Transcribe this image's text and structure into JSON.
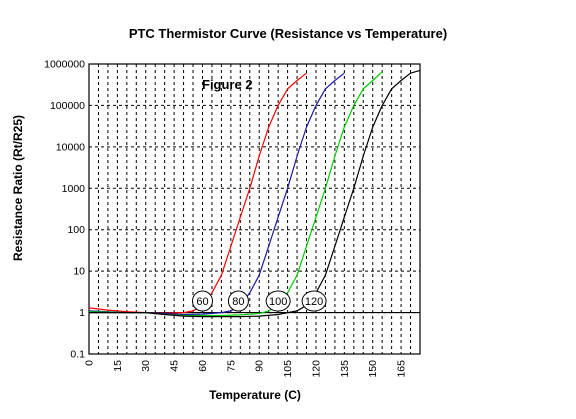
{
  "chart_data": {
    "type": "line",
    "title": "PTC  Thermistor Curve  (Resistance vs Temperature)",
    "xlabel": "Temperature (C)",
    "ylabel": "Resistance Ratio (Rt/R25)",
    "annotation": "Figure  2",
    "xlim": [
      0,
      175
    ],
    "ylim": [
      0.1,
      1000000
    ],
    "yscale": "log",
    "x_ticks": [
      "0",
      "15",
      "30",
      "45",
      "60",
      "75",
      "90",
      "105",
      "120",
      "135",
      "150",
      "165"
    ],
    "y_ticks": [
      "0.1",
      "1",
      "10",
      "100",
      "1000",
      "10000",
      "100000",
      "1000000"
    ],
    "grid": true,
    "series": [
      {
        "name": "60",
        "color": "#ff0000",
        "x": [
          0,
          10,
          20,
          30,
          40,
          50,
          55,
          60,
          65,
          70,
          75,
          80,
          85,
          90,
          95,
          100,
          105,
          110,
          115
        ],
        "y": [
          1.3,
          1.15,
          1.05,
          1.0,
          0.97,
          1.0,
          1.1,
          1.5,
          3,
          8,
          40,
          200,
          1000,
          6000,
          30000,
          100000,
          250000,
          400000,
          600000
        ]
      },
      {
        "name": "80",
        "color": "#1a1aa6",
        "x": [
          0,
          20,
          30,
          40,
          50,
          60,
          70,
          75,
          80,
          85,
          90,
          95,
          100,
          105,
          110,
          115,
          120,
          125,
          130,
          135
        ],
        "y": [
          1.1,
          1.0,
          1.0,
          0.95,
          0.9,
          0.92,
          1.0,
          1.1,
          1.5,
          3,
          8,
          40,
          200,
          1000,
          6000,
          30000,
          100000,
          250000,
          400000,
          600000
        ]
      },
      {
        "name": "100",
        "color": "#00cc00",
        "x": [
          0,
          20,
          30,
          40,
          50,
          60,
          70,
          80,
          90,
          95,
          100,
          105,
          110,
          115,
          120,
          125,
          130,
          135,
          140,
          145,
          150,
          155
        ],
        "y": [
          1.05,
          1.0,
          1.0,
          0.9,
          0.85,
          0.85,
          0.85,
          0.88,
          0.95,
          1.1,
          1.5,
          3,
          8,
          40,
          200,
          1000,
          6000,
          30000,
          100000,
          250000,
          400000,
          650000
        ]
      },
      {
        "name": "120",
        "color": "#000000",
        "x": [
          0,
          20,
          30,
          40,
          50,
          60,
          70,
          80,
          90,
          100,
          110,
          115,
          120,
          125,
          130,
          135,
          140,
          145,
          150,
          155,
          160,
          165,
          170,
          175
        ],
        "y": [
          1.0,
          1.0,
          1.0,
          0.9,
          0.82,
          0.8,
          0.8,
          0.8,
          0.82,
          0.9,
          1.1,
          1.5,
          3,
          8,
          40,
          200,
          1000,
          6000,
          30000,
          100000,
          250000,
          400000,
          600000,
          700000
        ]
      }
    ],
    "labels": [
      {
        "text": "60",
        "x": 60,
        "y": 1.9
      },
      {
        "text": "80",
        "x": 79,
        "y": 1.9
      },
      {
        "text": "100",
        "x": 100,
        "y": 1.9
      },
      {
        "text": "120",
        "x": 119,
        "y": 1.9
      }
    ]
  }
}
